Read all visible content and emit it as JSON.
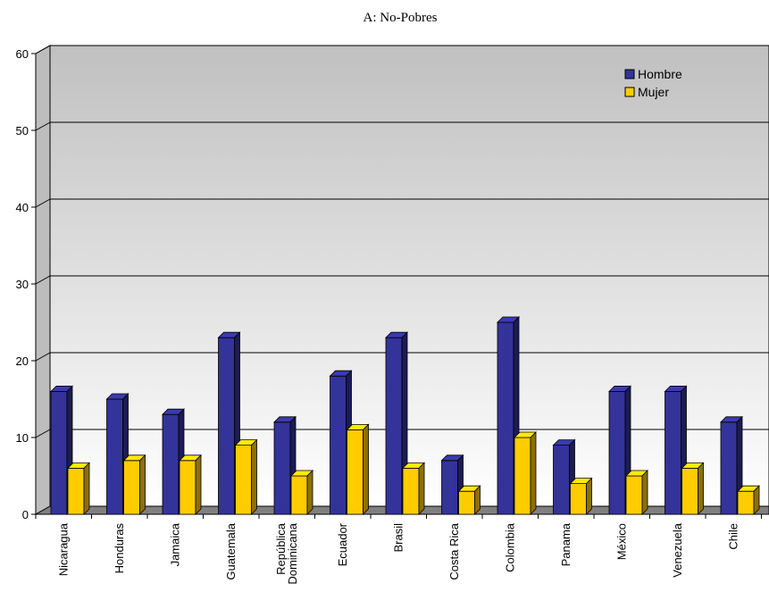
{
  "chart_data": {
    "type": "bar",
    "title": "A: No-Pobres",
    "xlabel": "",
    "ylabel": "",
    "ylim": [
      0,
      60
    ],
    "yticks": [
      0,
      10,
      20,
      30,
      40,
      50,
      60
    ],
    "grid": true,
    "legend_position": "top-right",
    "categories": [
      "Nicaragua",
      "Honduras",
      "Jamaica",
      "Guatemala",
      "República Dominicana",
      "Ecuador",
      "Brasil",
      "Costa Rica",
      "Colombia",
      "Panama",
      "México",
      "Venezuela",
      "Chile"
    ],
    "series": [
      {
        "name": "Hombre",
        "color": "#333399",
        "values": [
          16,
          15,
          13,
          23,
          12,
          18,
          23,
          7,
          25,
          9,
          16,
          16,
          12
        ]
      },
      {
        "name": "Mujer",
        "color": "#FFCC00",
        "values": [
          6,
          7,
          7,
          9,
          5,
          11,
          6,
          3,
          10,
          4,
          5,
          6,
          3
        ]
      }
    ]
  }
}
